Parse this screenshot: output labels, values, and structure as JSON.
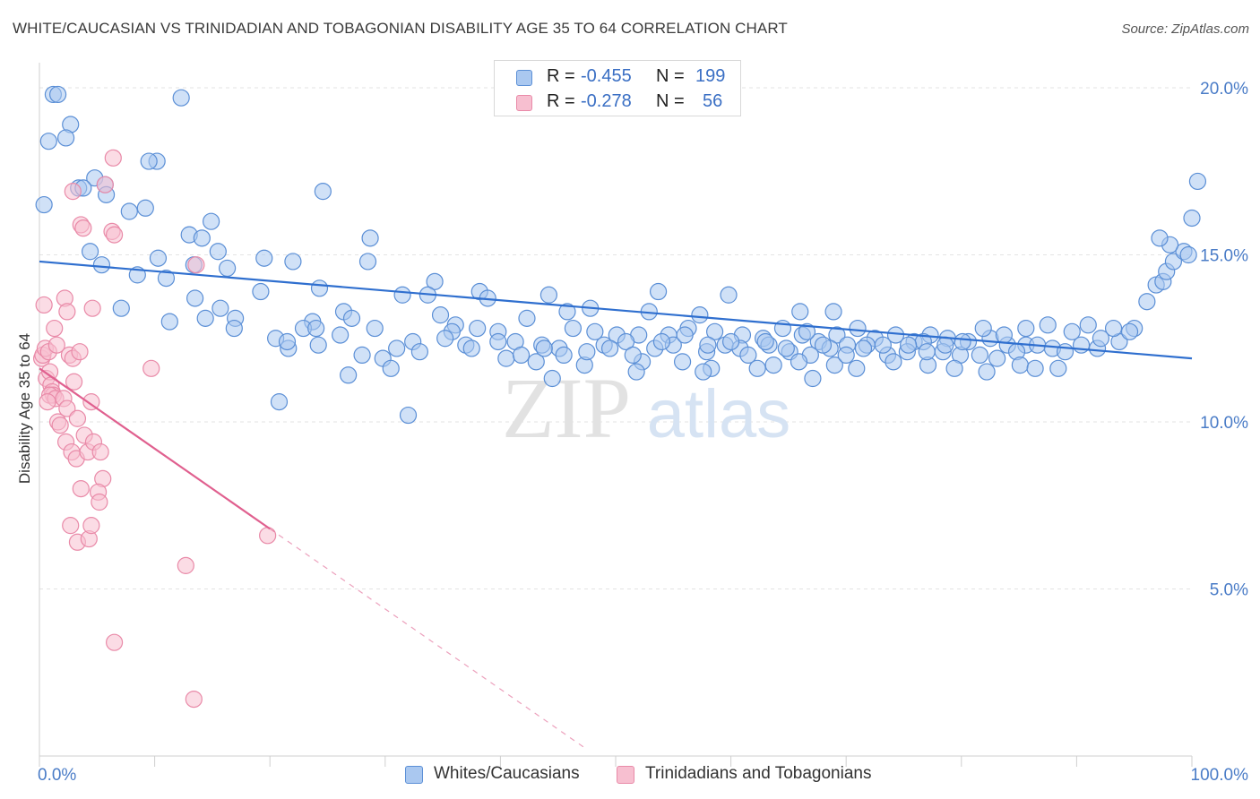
{
  "title": "WHITE/CAUCASIAN VS TRINIDADIAN AND TOBAGONIAN DISABILITY AGE 35 TO 64 CORRELATION CHART",
  "source": "Source: ZipAtlas.com",
  "watermark": {
    "zip": "ZIP",
    "atlas": "atlas"
  },
  "legend_top": {
    "rows": [
      {
        "r_label": "R = ",
        "r_value": "-0.455",
        "n_label": "N = ",
        "n_value": "199",
        "color": "#aac8f0",
        "border": "#5b8fd6"
      },
      {
        "r_label": "R = ",
        "r_value": "-0.278",
        "n_label": "N = ",
        "n_value": "56",
        "color": "#f7bfd0",
        "border": "#e98aa8"
      }
    ]
  },
  "legend_bottom": [
    {
      "label": "Whites/Caucasians",
      "color": "#aac8f0",
      "border": "#5b8fd6"
    },
    {
      "label": "Trinidadians and Tobagonians",
      "color": "#f7bfd0",
      "border": "#e98aa8"
    }
  ],
  "chart_data": {
    "type": "scatter",
    "title": "WHITE/CAUCASIAN VS TRINIDADIAN AND TOBAGONIAN DISABILITY AGE 35 TO 64 CORRELATION CHART",
    "xlabel": "",
    "ylabel": "Disability Age 35 to 64",
    "xlim": [
      0,
      100
    ],
    "ylim": [
      0,
      20.5
    ],
    "x_tick_labels": [
      "0.0%",
      "100.0%"
    ],
    "y_ticks": [
      5,
      10,
      15,
      20
    ],
    "y_tick_labels": [
      "5.0%",
      "10.0%",
      "15.0%",
      "20.0%"
    ],
    "grid": true,
    "legend_position": "bottom",
    "colors": {
      "whites": "#5b8fd6",
      "whites_fill": "#aac8f0",
      "trin": "#e98aa8",
      "trin_fill": "#f7bfd0",
      "whites_line": "#2f6fcf",
      "trin_line": "#e0608f"
    },
    "series": [
      {
        "name": "Whites/Caucasians",
        "trend": {
          "x0": 0,
          "y0": 14.8,
          "x1": 100,
          "y1": 11.9
        },
        "points": [
          [
            1.2,
            19.8
          ],
          [
            1.6,
            19.8
          ],
          [
            12.3,
            19.7
          ],
          [
            2.7,
            18.9
          ],
          [
            2.3,
            18.5
          ],
          [
            0.8,
            18.4
          ],
          [
            10.2,
            17.8
          ],
          [
            9.5,
            17.8
          ],
          [
            4.8,
            17.3
          ],
          [
            5.7,
            17.1
          ],
          [
            3.4,
            17.0
          ],
          [
            3.8,
            17.0
          ],
          [
            24.6,
            16.9
          ],
          [
            5.8,
            16.8
          ],
          [
            0.4,
            16.5
          ],
          [
            9.2,
            16.4
          ],
          [
            7.8,
            16.3
          ],
          [
            14.9,
            16.0
          ],
          [
            13.0,
            15.6
          ],
          [
            14.1,
            15.5
          ],
          [
            28.7,
            15.5
          ],
          [
            4.4,
            15.1
          ],
          [
            15.5,
            15.1
          ],
          [
            10.3,
            14.9
          ],
          [
            19.5,
            14.9
          ],
          [
            22.0,
            14.8
          ],
          [
            28.5,
            14.8
          ],
          [
            5.4,
            14.7
          ],
          [
            13.4,
            14.7
          ],
          [
            16.3,
            14.6
          ],
          [
            8.5,
            14.4
          ],
          [
            11.0,
            14.3
          ],
          [
            34.3,
            14.2
          ],
          [
            24.3,
            14.0
          ],
          [
            19.2,
            13.9
          ],
          [
            31.5,
            13.8
          ],
          [
            33.7,
            13.8
          ],
          [
            13.5,
            13.7
          ],
          [
            38.2,
            13.9
          ],
          [
            38.9,
            13.7
          ],
          [
            44.2,
            13.8
          ],
          [
            53.7,
            13.9
          ],
          [
            59.8,
            13.8
          ],
          [
            7.1,
            13.4
          ],
          [
            15.7,
            13.4
          ],
          [
            26.4,
            13.3
          ],
          [
            34.8,
            13.2
          ],
          [
            45.8,
            13.3
          ],
          [
            47.8,
            13.4
          ],
          [
            52.9,
            13.3
          ],
          [
            57.3,
            13.2
          ],
          [
            66.0,
            13.3
          ],
          [
            14.4,
            13.1
          ],
          [
            11.3,
            13.0
          ],
          [
            17.0,
            13.1
          ],
          [
            23.7,
            13.0
          ],
          [
            27.1,
            13.1
          ],
          [
            42.3,
            13.1
          ],
          [
            36.1,
            12.9
          ],
          [
            46.3,
            12.8
          ],
          [
            68.9,
            13.3
          ],
          [
            16.9,
            12.8
          ],
          [
            29.1,
            12.8
          ],
          [
            20.5,
            12.5
          ],
          [
            21.6,
            12.2
          ],
          [
            22.9,
            12.8
          ],
          [
            24.0,
            12.8
          ],
          [
            26.1,
            12.6
          ],
          [
            35.8,
            12.7
          ],
          [
            38.0,
            12.8
          ],
          [
            39.8,
            12.7
          ],
          [
            48.2,
            12.7
          ],
          [
            50.1,
            12.6
          ],
          [
            52.0,
            12.6
          ],
          [
            54.6,
            12.6
          ],
          [
            56.3,
            12.8
          ],
          [
            58.6,
            12.7
          ],
          [
            61.0,
            12.6
          ],
          [
            62.8,
            12.5
          ],
          [
            64.5,
            12.8
          ],
          [
            66.2,
            12.6
          ],
          [
            67.6,
            12.4
          ],
          [
            69.2,
            12.6
          ],
          [
            71.0,
            12.8
          ],
          [
            72.5,
            12.5
          ],
          [
            74.3,
            12.6
          ],
          [
            75.9,
            12.4
          ],
          [
            77.3,
            12.6
          ],
          [
            78.8,
            12.5
          ],
          [
            80.6,
            12.4
          ],
          [
            82.5,
            12.5
          ],
          [
            84.0,
            12.3
          ],
          [
            85.6,
            12.3
          ],
          [
            24.2,
            12.3
          ],
          [
            32.4,
            12.4
          ],
          [
            37.0,
            12.3
          ],
          [
            41.3,
            12.4
          ],
          [
            43.6,
            12.3
          ],
          [
            45.1,
            12.2
          ],
          [
            49.0,
            12.3
          ],
          [
            50.9,
            12.4
          ],
          [
            53.4,
            12.2
          ],
          [
            55.0,
            12.3
          ],
          [
            57.9,
            12.1
          ],
          [
            59.5,
            12.3
          ],
          [
            60.8,
            12.2
          ],
          [
            63.3,
            12.3
          ],
          [
            65.1,
            12.1
          ],
          [
            66.9,
            12.0
          ],
          [
            68.6,
            12.2
          ],
          [
            70.1,
            12.3
          ],
          [
            71.8,
            12.3
          ],
          [
            73.6,
            12.0
          ],
          [
            75.3,
            12.1
          ],
          [
            76.7,
            12.4
          ],
          [
            78.4,
            12.1
          ],
          [
            79.9,
            12.0
          ],
          [
            81.6,
            12.0
          ],
          [
            83.1,
            11.9
          ],
          [
            84.8,
            12.1
          ],
          [
            86.6,
            12.3
          ],
          [
            87.9,
            12.2
          ],
          [
            89.0,
            12.1
          ],
          [
            91.8,
            12.2
          ],
          [
            21.5,
            12.4
          ],
          [
            29.8,
            11.9
          ],
          [
            30.5,
            11.6
          ],
          [
            40.5,
            11.9
          ],
          [
            43.1,
            11.8
          ],
          [
            47.3,
            11.7
          ],
          [
            52.3,
            11.8
          ],
          [
            55.8,
            11.8
          ],
          [
            58.3,
            11.6
          ],
          [
            63.7,
            11.7
          ],
          [
            65.9,
            11.8
          ],
          [
            69.0,
            11.7
          ],
          [
            70.9,
            11.6
          ],
          [
            74.1,
            11.8
          ],
          [
            77.1,
            11.7
          ],
          [
            79.4,
            11.6
          ],
          [
            82.2,
            11.5
          ],
          [
            85.1,
            11.7
          ],
          [
            86.4,
            11.6
          ],
          [
            88.4,
            11.6
          ],
          [
            90.4,
            12.3
          ],
          [
            92.1,
            12.5
          ],
          [
            93.7,
            12.4
          ],
          [
            95.0,
            12.8
          ],
          [
            96.1,
            13.6
          ],
          [
            96.9,
            14.1
          ],
          [
            97.5,
            14.2
          ],
          [
            97.8,
            14.5
          ],
          [
            98.4,
            14.8
          ],
          [
            99.3,
            15.1
          ],
          [
            99.7,
            15.0
          ],
          [
            98.1,
            15.3
          ],
          [
            97.2,
            15.5
          ],
          [
            100.0,
            16.1
          ],
          [
            100.5,
            17.2
          ],
          [
            94.6,
            12.7
          ],
          [
            93.2,
            12.8
          ],
          [
            91.0,
            12.9
          ],
          [
            89.6,
            12.7
          ],
          [
            87.5,
            12.9
          ],
          [
            85.6,
            12.8
          ],
          [
            83.7,
            12.6
          ],
          [
            81.9,
            12.8
          ],
          [
            80.1,
            12.4
          ],
          [
            78.6,
            12.3
          ],
          [
            77.0,
            12.1
          ],
          [
            75.4,
            12.3
          ],
          [
            73.2,
            12.3
          ],
          [
            71.5,
            12.2
          ],
          [
            70.0,
            12.0
          ],
          [
            68.0,
            12.3
          ],
          [
            66.6,
            12.7
          ],
          [
            64.8,
            12.2
          ],
          [
            63.0,
            12.4
          ],
          [
            61.5,
            12.0
          ],
          [
            60.0,
            12.4
          ],
          [
            58.0,
            12.3
          ],
          [
            56.0,
            12.6
          ],
          [
            54.0,
            12.4
          ],
          [
            51.5,
            12.0
          ],
          [
            49.5,
            12.2
          ],
          [
            47.5,
            12.1
          ],
          [
            45.5,
            12.0
          ],
          [
            43.8,
            12.2
          ],
          [
            41.8,
            12.0
          ],
          [
            39.8,
            12.4
          ],
          [
            37.5,
            12.2
          ],
          [
            35.2,
            12.5
          ],
          [
            33.0,
            12.1
          ],
          [
            31.0,
            12.2
          ],
          [
            28.0,
            12.0
          ],
          [
            26.8,
            11.4
          ],
          [
            20.8,
            10.6
          ],
          [
            32.0,
            10.2
          ],
          [
            44.5,
            11.3
          ],
          [
            51.8,
            11.5
          ],
          [
            57.6,
            11.5
          ],
          [
            62.3,
            11.6
          ],
          [
            67.1,
            11.3
          ]
        ]
      },
      {
        "name": "Trinidadians and Tobagonians",
        "trend": {
          "x0": 0,
          "y0": 11.6,
          "x1": 20,
          "y1": 6.8,
          "dash_x1": 47.5,
          "dash_y1": 0.2
        },
        "points": [
          [
            0.2,
            11.9
          ],
          [
            0.3,
            12.0
          ],
          [
            0.4,
            13.5
          ],
          [
            0.5,
            12.2
          ],
          [
            0.6,
            11.3
          ],
          [
            0.8,
            12.1
          ],
          [
            0.9,
            11.5
          ],
          [
            1.0,
            11.1
          ],
          [
            1.1,
            10.9
          ],
          [
            1.2,
            10.8
          ],
          [
            0.9,
            10.8
          ],
          [
            1.4,
            10.7
          ],
          [
            0.7,
            10.6
          ],
          [
            1.3,
            12.8
          ],
          [
            1.5,
            12.3
          ],
          [
            2.2,
            13.7
          ],
          [
            2.4,
            13.3
          ],
          [
            2.6,
            12.0
          ],
          [
            2.9,
            11.9
          ],
          [
            3.5,
            12.1
          ],
          [
            3.0,
            11.2
          ],
          [
            2.1,
            10.7
          ],
          [
            2.4,
            10.4
          ],
          [
            3.3,
            10.1
          ],
          [
            1.6,
            10.0
          ],
          [
            1.8,
            9.9
          ],
          [
            2.3,
            9.4
          ],
          [
            2.8,
            9.1
          ],
          [
            3.2,
            8.9
          ],
          [
            3.9,
            9.6
          ],
          [
            4.2,
            9.1
          ],
          [
            4.7,
            9.4
          ],
          [
            5.3,
            9.1
          ],
          [
            4.5,
            10.6
          ],
          [
            3.6,
            8.0
          ],
          [
            5.5,
            8.3
          ],
          [
            5.1,
            7.9
          ],
          [
            5.2,
            7.6
          ],
          [
            2.9,
            16.9
          ],
          [
            3.6,
            15.9
          ],
          [
            3.8,
            15.8
          ],
          [
            6.3,
            15.7
          ],
          [
            6.5,
            15.6
          ],
          [
            5.7,
            17.1
          ],
          [
            6.4,
            17.9
          ],
          [
            13.6,
            14.7
          ],
          [
            9.7,
            11.6
          ],
          [
            4.6,
            13.4
          ],
          [
            2.7,
            6.9
          ],
          [
            3.3,
            6.4
          ],
          [
            4.3,
            6.5
          ],
          [
            4.5,
            6.9
          ],
          [
            19.8,
            6.6
          ],
          [
            12.7,
            5.7
          ],
          [
            6.5,
            3.4
          ],
          [
            13.4,
            1.7
          ]
        ]
      }
    ]
  }
}
